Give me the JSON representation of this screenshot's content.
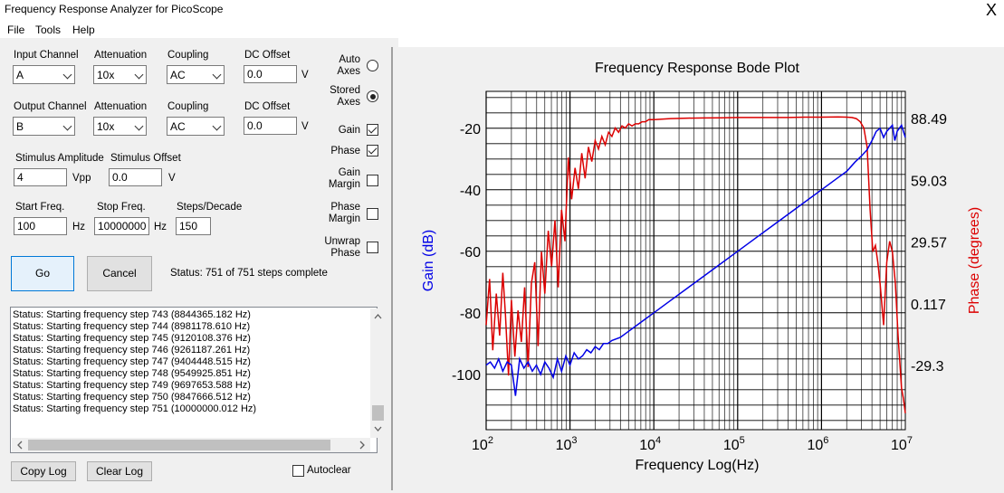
{
  "window": {
    "title": "Frequency Response Analyzer for PicoScope",
    "close_glyph": "X"
  },
  "menu": [
    {
      "label": "File"
    },
    {
      "label": "Tools"
    },
    {
      "label": "Help"
    }
  ],
  "input_row": {
    "channel_label": "Input Channel",
    "channel_value": "A",
    "attenuation_label": "Attenuation",
    "attenuation_value": "10x",
    "coupling_label": "Coupling",
    "coupling_value": "AC",
    "dc_offset_label": "DC Offset",
    "dc_offset_value": "0.0",
    "dc_unit": "V"
  },
  "output_row": {
    "channel_label": "Output Channel",
    "channel_value": "B",
    "attenuation_label": "Attenuation",
    "attenuation_value": "10x",
    "coupling_label": "Coupling",
    "coupling_value": "AC",
    "dc_offset_label": "DC Offset",
    "dc_offset_value": "0.0",
    "dc_unit": "V"
  },
  "stimulus": {
    "amplitude_label": "Stimulus Amplitude",
    "amplitude_value": "4",
    "amplitude_unit": "Vpp",
    "offset_label": "Stimulus Offset",
    "offset_value": "0.0",
    "offset_unit": "V"
  },
  "sweep": {
    "start_label": "Start Freq.",
    "start_value": "100",
    "start_unit": "Hz",
    "stop_label": "Stop Freq.",
    "stop_value": "10000000",
    "stop_unit": "Hz",
    "steps_label": "Steps/Decade",
    "steps_value": "150"
  },
  "options": {
    "auto_axes_l1": "Auto",
    "auto_axes_l2": "Axes",
    "auto_axes_selected": false,
    "stored_axes_l1": "Stored",
    "stored_axes_l2": "Axes",
    "stored_axes_selected": true,
    "gain_label": "Gain",
    "gain_checked": true,
    "phase_label": "Phase",
    "phase_checked": true,
    "gain_margin_l1": "Gain",
    "gain_margin_l2": "Margin",
    "gain_margin_checked": false,
    "phase_margin_l1": "Phase",
    "phase_margin_l2": "Margin",
    "phase_margin_checked": false,
    "unwrap_l1": "Unwrap",
    "unwrap_l2": "Phase",
    "unwrap_checked": false
  },
  "actions": {
    "go_label": "Go",
    "cancel_label": "Cancel",
    "status_text": "Status: 751 of 751 steps complete",
    "copy_log_label": "Copy Log",
    "clear_log_label": "Clear Log",
    "autoclear_label": "Autoclear",
    "autoclear_checked": false
  },
  "log_lines": [
    "Status: Starting frequency step 743 (8844365.182 Hz)",
    "Status: Starting frequency step 744 (8981178.610 Hz)",
    "Status: Starting frequency step 745 (9120108.376 Hz)",
    "Status: Starting frequency step 746 (9261187.261 Hz)",
    "Status: Starting frequency step 747 (9404448.515 Hz)",
    "Status: Starting frequency step 748 (9549925.851 Hz)",
    "Status: Starting frequency step 749 (9697653.588 Hz)",
    "Status: Starting frequency step 750 (9847666.512 Hz)",
    "Status: Starting frequency step 751 (10000000.012 Hz)"
  ],
  "chart_data": {
    "type": "line",
    "title": "Frequency Response Bode Plot",
    "xlabel": "Frequency Log(Hz)",
    "ylabel_left": "Gain (dB)",
    "ylabel_right": "Phase (degrees)",
    "x_scale": "log",
    "xlim": [
      100,
      10000000
    ],
    "ylim_left": [
      -118,
      -8
    ],
    "ylim_right": [
      -59.86,
      101.48
    ],
    "x_ticks": [
      {
        "base": "10",
        "exp": "2"
      },
      {
        "base": "10",
        "exp": "3"
      },
      {
        "base": "10",
        "exp": "4"
      },
      {
        "base": "10",
        "exp": "5"
      },
      {
        "base": "10",
        "exp": "6"
      },
      {
        "base": "10",
        "exp": "7"
      }
    ],
    "y_ticks_left": [
      "-20",
      "-40",
      "-60",
      "-80",
      "-100"
    ],
    "y_ticks_right": [
      "88.49",
      "59.03",
      "29.57",
      "0.117",
      "-29.3"
    ],
    "grid": true,
    "colors": {
      "gain": "#0000e6",
      "phase": "#dc0000"
    },
    "series": [
      {
        "x": [
          100,
          112,
          126,
          141,
          158,
          178,
          200,
          224,
          251,
          282,
          316,
          355,
          398,
          447,
          501,
          562,
          631,
          708,
          794,
          891,
          1000,
          1122,
          1259,
          1413,
          1585,
          1778,
          1995,
          2239,
          2512,
          2818,
          3162,
          3981,
          5012,
          6310,
          7943,
          10000,
          15849,
          25119,
          39811,
          63096,
          100000,
          158489,
          251189,
          398107,
          630957,
          1000000,
          1584893,
          2000000,
          2511886,
          3000000,
          3500000,
          4000000,
          4500000,
          5000000,
          5500000,
          6000000,
          7000000,
          7500000,
          8000000,
          9000000,
          10000000
        ],
        "values": [
          -97,
          -96,
          -98,
          -95,
          -99,
          -96,
          -97,
          -107,
          -95,
          -98,
          -96,
          -99,
          -97,
          -100,
          -96,
          -98,
          -101,
          -95,
          -99,
          -94,
          -97,
          -93,
          -95,
          -94,
          -92,
          -93,
          -91,
          -92,
          -90,
          -90,
          -89,
          -88,
          -86,
          -84,
          -82,
          -80,
          -76,
          -72,
          -68,
          -64,
          -60,
          -56,
          -52,
          -48,
          -44,
          -40,
          -36,
          -34,
          -31,
          -29,
          -27,
          -24,
          -21,
          -20,
          -23,
          -21,
          -19,
          -24,
          -21,
          -19,
          -23
        ]
      },
      {
        "x": [
          100,
          110,
          120,
          132,
          145,
          158,
          170,
          185,
          200,
          220,
          240,
          263,
          288,
          316,
          347,
          380,
          417,
          457,
          501,
          550,
          603,
          661,
          724,
          794,
          871,
          955,
          1047,
          1148,
          1259,
          1380,
          1514,
          1660,
          1820,
          1995,
          2188,
          2399,
          2630,
          2884,
          3162,
          3467,
          3802,
          4169,
          4571,
          5012,
          5495,
          6026,
          6607,
          7244,
          7943,
          8710,
          9550,
          10000,
          15849,
          25119,
          39811,
          63096,
          100000,
          158489,
          251189,
          398107,
          630957,
          1000000,
          1584893,
          2000000,
          2300000,
          2600000,
          2900000,
          3200000,
          3500000,
          3800000,
          4100000,
          4400000,
          4700000,
          5000000,
          5500000,
          6000000,
          6500000,
          7000000,
          7600000,
          8200000,
          9000000,
          9500000,
          10000000
        ],
        "values": [
          -10,
          12,
          -22,
          5,
          -15,
          15,
          -5,
          -34,
          2,
          -25,
          -3,
          -18,
          8,
          -30,
          10,
          20,
          -20,
          25,
          5,
          35,
          18,
          40,
          8,
          45,
          30,
          70,
          50,
          65,
          55,
          72,
          60,
          75,
          68,
          78,
          74,
          80,
          76,
          82,
          80,
          84,
          82,
          85,
          84,
          86,
          85,
          86,
          86,
          87,
          87,
          88,
          88,
          88,
          88.5,
          88.7,
          88.8,
          88.9,
          89,
          89,
          89,
          89,
          89.2,
          89.2,
          89.3,
          89.2,
          89,
          88.5,
          87,
          84,
          75,
          45,
          25,
          28,
          20,
          10,
          -10,
          20,
          30,
          25,
          10,
          -15,
          -40,
          -45,
          -52
        ]
      }
    ]
  }
}
